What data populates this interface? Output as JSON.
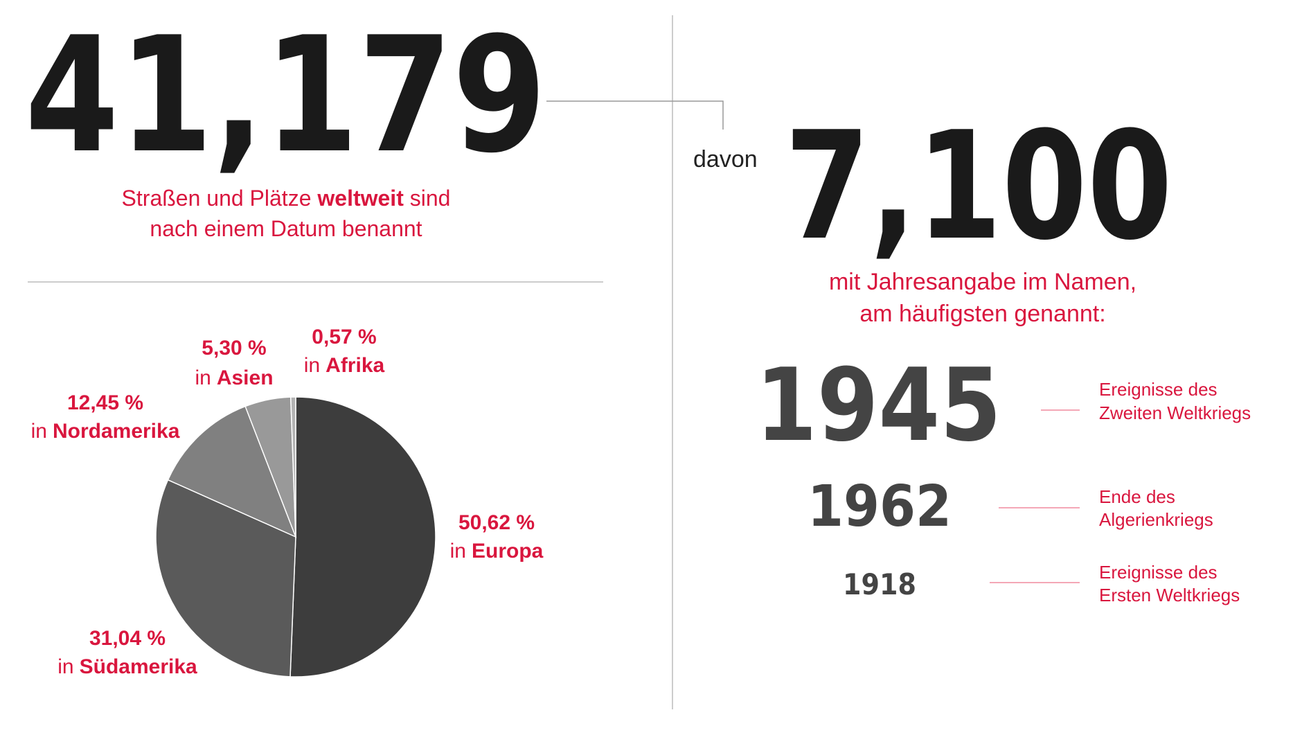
{
  "total": {
    "number": "41,179",
    "caption": [
      [
        "Straßen und Plätze ",
        "weltweit",
        " sind"
      ],
      [
        "nach einem Datum benannt"
      ]
    ]
  },
  "subset": {
    "prefix": "davon",
    "number": "7,100",
    "caption": [
      "mit Jahresangabe im Namen,",
      "am häufigsten genannt:"
    ]
  },
  "years": [
    {
      "year": "1945",
      "event": [
        "Ereignisse des",
        "Zweiten Weltkriegs"
      ]
    },
    {
      "year": "1962",
      "event": [
        "Ende des",
        "Algerienkriegs"
      ]
    },
    {
      "year": "1918",
      "event": [
        "Ereignisse des",
        "Ersten Weltkriegs"
      ]
    }
  ],
  "chart_data": {
    "type": "pie",
    "category_prefix": "in",
    "categories": [
      "Europa",
      "Südamerika",
      "Nordamerika",
      "Asien",
      "Afrika"
    ],
    "values": [
      50.62,
      31.04,
      12.45,
      5.3,
      0.57
    ],
    "value_labels": [
      "50,62 %",
      "31,04 %",
      "12,45 %",
      "5,30 %",
      "0,57 %"
    ],
    "colors": [
      "#3d3d3d",
      "#5a5a5a",
      "#808080",
      "#999999",
      "#b3b3b3"
    ]
  }
}
